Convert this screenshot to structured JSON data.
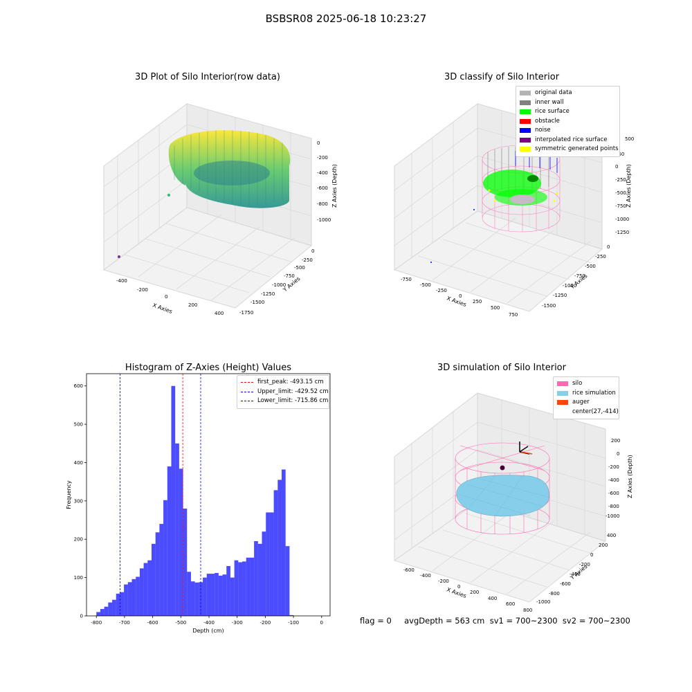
{
  "suptitle": "BSBSR08 2025-06-18 10:23:27",
  "panels": {
    "raw": {
      "title": "3D Plot of Silo Interior(row data)",
      "x_ticks": [
        "-400",
        "-200",
        "0",
        "200",
        "400"
      ],
      "y_ticks": [
        "0",
        "-250",
        "-500",
        "-750",
        "-1000",
        "-1250",
        "-1500",
        "-1750"
      ],
      "z_ticks": [
        "0",
        "-200",
        "-400",
        "-600",
        "-800",
        "-1000"
      ],
      "xlabel": "X Axies",
      "ylabel": "Y Axies",
      "zlabel": "Z Axies (Depth)"
    },
    "classify": {
      "title": "3D classify of Silo Interior",
      "x_ticks": [
        "-750",
        "-500",
        "-250",
        "0",
        "250",
        "500",
        "750"
      ],
      "y_ticks": [
        "0",
        "-250",
        "-500",
        "-750",
        "-1000",
        "-1250",
        "-1500"
      ],
      "z_ticks": [
        "250",
        "0",
        "-250",
        "-500",
        "-750",
        "-1000",
        "-1250"
      ],
      "z_top_partial": "500",
      "xlabel": "X Axies",
      "ylabel": "Y Axies",
      "zlabel": "Z Axies (Depth)",
      "legend": [
        {
          "label": "original data",
          "color": "#b4b4b4"
        },
        {
          "label": "inner wall",
          "color": "#808080"
        },
        {
          "label": "rice surface",
          "color": "#00ff00"
        },
        {
          "label": "obstacle",
          "color": "#ff0000"
        },
        {
          "label": "noise",
          "color": "#0000ff"
        },
        {
          "label": "interpolated rice surface",
          "color": "#800080"
        },
        {
          "label": "symmetric generated points",
          "color": "#ffff00"
        }
      ]
    },
    "simulation": {
      "title": "3D simulation of Silo Interior",
      "x_ticks": [
        "-600",
        "-400",
        "-200",
        "0",
        "200",
        "400",
        "600",
        "800"
      ],
      "y_ticks": [
        "400",
        "200",
        "0",
        "-200",
        "-400",
        "-600",
        "-800",
        "-1000"
      ],
      "z_ticks": [
        "200",
        "0",
        "-200",
        "-400",
        "-600",
        "-800",
        "-1000"
      ],
      "xlabel": "X Axies",
      "ylabel": "Y Axies",
      "zlabel": "Z Axies (Depth)",
      "legend": [
        {
          "label": "silo",
          "color": "#ff69b4"
        },
        {
          "label": "rice simulation",
          "color": "#87ceeb"
        },
        {
          "label": "auger",
          "color": "#ff4500"
        },
        {
          "label": "center(27,-414)",
          "color": ""
        }
      ]
    }
  },
  "chart_data": {
    "type": "bar",
    "title": "Histogram of Z-Axies (Height) Values",
    "xlabel": "Depth (cm)",
    "ylabel": "Frequency",
    "xlim": [
      -835,
      30
    ],
    "ylim": [
      0,
      632
    ],
    "x_ticks": [
      -800,
      -700,
      -600,
      -500,
      -400,
      -300,
      -200,
      -100,
      0
    ],
    "y_ticks": [
      0,
      100,
      200,
      300,
      400,
      500,
      600
    ],
    "bar_color": "#0000ff",
    "bins": [
      {
        "x0": -800,
        "x1": -786,
        "v": 10
      },
      {
        "x0": -786,
        "x1": -772,
        "v": 18
      },
      {
        "x0": -772,
        "x1": -758,
        "v": 24
      },
      {
        "x0": -758,
        "x1": -744,
        "v": 35
      },
      {
        "x0": -744,
        "x1": -730,
        "v": 42
      },
      {
        "x0": -730,
        "x1": -716,
        "v": 58
      },
      {
        "x0": -716,
        "x1": -702,
        "v": 62
      },
      {
        "x0": -702,
        "x1": -688,
        "v": 82
      },
      {
        "x0": -688,
        "x1": -674,
        "v": 88
      },
      {
        "x0": -674,
        "x1": -660,
        "v": 96
      },
      {
        "x0": -660,
        "x1": -646,
        "v": 102
      },
      {
        "x0": -646,
        "x1": -632,
        "v": 124
      },
      {
        "x0": -632,
        "x1": -618,
        "v": 138
      },
      {
        "x0": -618,
        "x1": -604,
        "v": 145
      },
      {
        "x0": -604,
        "x1": -590,
        "v": 188
      },
      {
        "x0": -590,
        "x1": -576,
        "v": 218
      },
      {
        "x0": -576,
        "x1": -562,
        "v": 240
      },
      {
        "x0": -562,
        "x1": -548,
        "v": 302
      },
      {
        "x0": -548,
        "x1": -534,
        "v": 390
      },
      {
        "x0": -534,
        "x1": -520,
        "v": 600
      },
      {
        "x0": -520,
        "x1": -506,
        "v": 450
      },
      {
        "x0": -506,
        "x1": -492,
        "v": 384
      },
      {
        "x0": -492,
        "x1": -478,
        "v": 280
      },
      {
        "x0": -478,
        "x1": -464,
        "v": 115
      },
      {
        "x0": -464,
        "x1": -450,
        "v": 90
      },
      {
        "x0": -450,
        "x1": -436,
        "v": 87
      },
      {
        "x0": -436,
        "x1": -422,
        "v": 88
      },
      {
        "x0": -422,
        "x1": -408,
        "v": 100
      },
      {
        "x0": -408,
        "x1": -394,
        "v": 110
      },
      {
        "x0": -394,
        "x1": -380,
        "v": 110
      },
      {
        "x0": -380,
        "x1": -366,
        "v": 112
      },
      {
        "x0": -366,
        "x1": -352,
        "v": 105
      },
      {
        "x0": -352,
        "x1": -338,
        "v": 108
      },
      {
        "x0": -338,
        "x1": -324,
        "v": 130
      },
      {
        "x0": -324,
        "x1": -310,
        "v": 100
      },
      {
        "x0": -310,
        "x1": -296,
        "v": 145
      },
      {
        "x0": -296,
        "x1": -282,
        "v": 140
      },
      {
        "x0": -282,
        "x1": -268,
        "v": 142
      },
      {
        "x0": -268,
        "x1": -254,
        "v": 152
      },
      {
        "x0": -254,
        "x1": -240,
        "v": 152
      },
      {
        "x0": -240,
        "x1": -226,
        "v": 195
      },
      {
        "x0": -226,
        "x1": -212,
        "v": 188
      },
      {
        "x0": -212,
        "x1": -198,
        "v": 220
      },
      {
        "x0": -198,
        "x1": -184,
        "v": 270
      },
      {
        "x0": -184,
        "x1": -170,
        "v": 270
      },
      {
        "x0": -170,
        "x1": -156,
        "v": 328
      },
      {
        "x0": -156,
        "x1": -142,
        "v": 355
      },
      {
        "x0": -142,
        "x1": -128,
        "v": 382
      },
      {
        "x0": -128,
        "x1": -114,
        "v": 182
      },
      {
        "x0": -114,
        "x1": -100,
        "v": 2
      }
    ],
    "vlines": [
      {
        "label": "first_peak: -493.15 cm",
        "x": -493.15,
        "color": "#ff0000"
      },
      {
        "label": "Upper_limit: -429.52 cm",
        "x": -429.52,
        "color": "#0000ff"
      },
      {
        "label": "Lower_limit: -715.86 cm",
        "x": -715.86,
        "color": "#0000ff"
      }
    ]
  },
  "status_line": "flag = 0     avgDepth = 563 cm  sv1 = 700~2300  sv2 = 700~2300"
}
